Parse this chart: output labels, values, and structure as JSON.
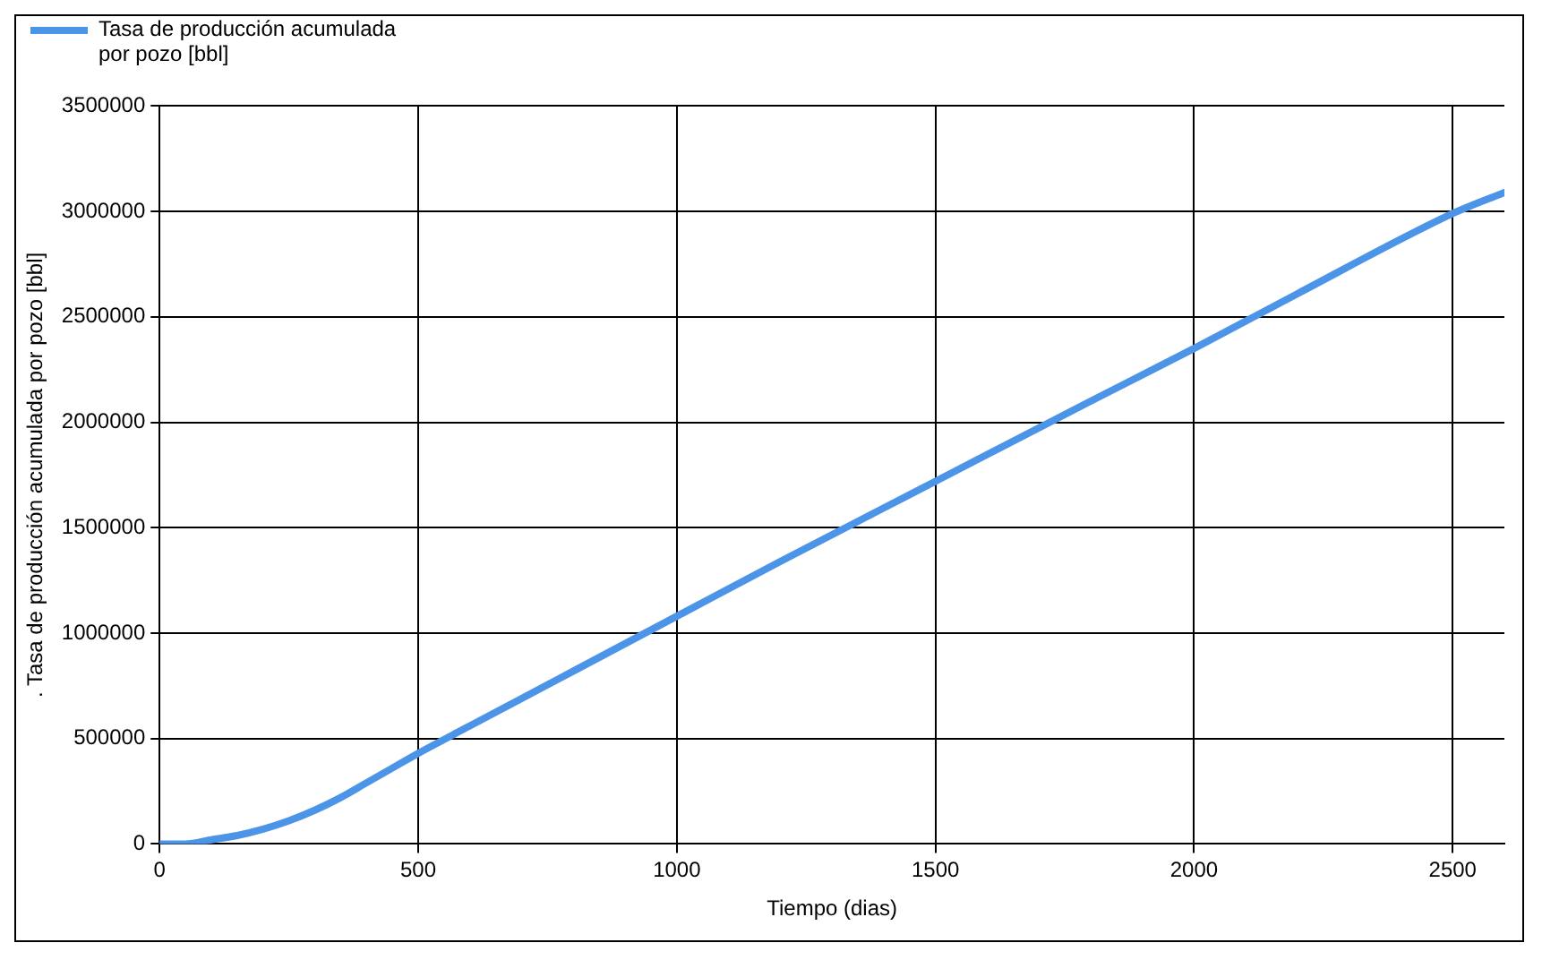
{
  "chart_data": {
    "type": "line",
    "xlabel": "Tiempo (dias)",
    "ylabel": ". Tasa de producción acumulada por pozo [bbl]",
    "x": [
      0,
      50,
      100,
      150,
      200,
      250,
      300,
      350,
      400,
      450,
      500,
      600,
      700,
      800,
      1000,
      1200,
      1500,
      1800,
      2000,
      2200,
      2500,
      2600
    ],
    "series": [
      {
        "name": "Tasa de producción acumulada por pozo [bbl]",
        "color": "#4c94e8",
        "values": [
          0,
          0,
          20000,
          40000,
          70000,
          110000,
          160000,
          220000,
          290000,
          360000,
          430000,
          560000,
          690000,
          820000,
          1080000,
          1340000,
          1720000,
          2100000,
          2350000,
          2610000,
          2990000,
          3090000
        ]
      }
    ],
    "xlim": [
      0,
      2600
    ],
    "xticks": [
      0,
      500,
      1000,
      1500,
      2000,
      2500
    ],
    "ylim": [
      0,
      3500000
    ],
    "yticks": [
      0,
      500000,
      1000000,
      1500000,
      2000000,
      2500000,
      3000000,
      3500000
    ],
    "grid": true,
    "legend": "top left",
    "marker": "none",
    "line_style": "solid"
  }
}
